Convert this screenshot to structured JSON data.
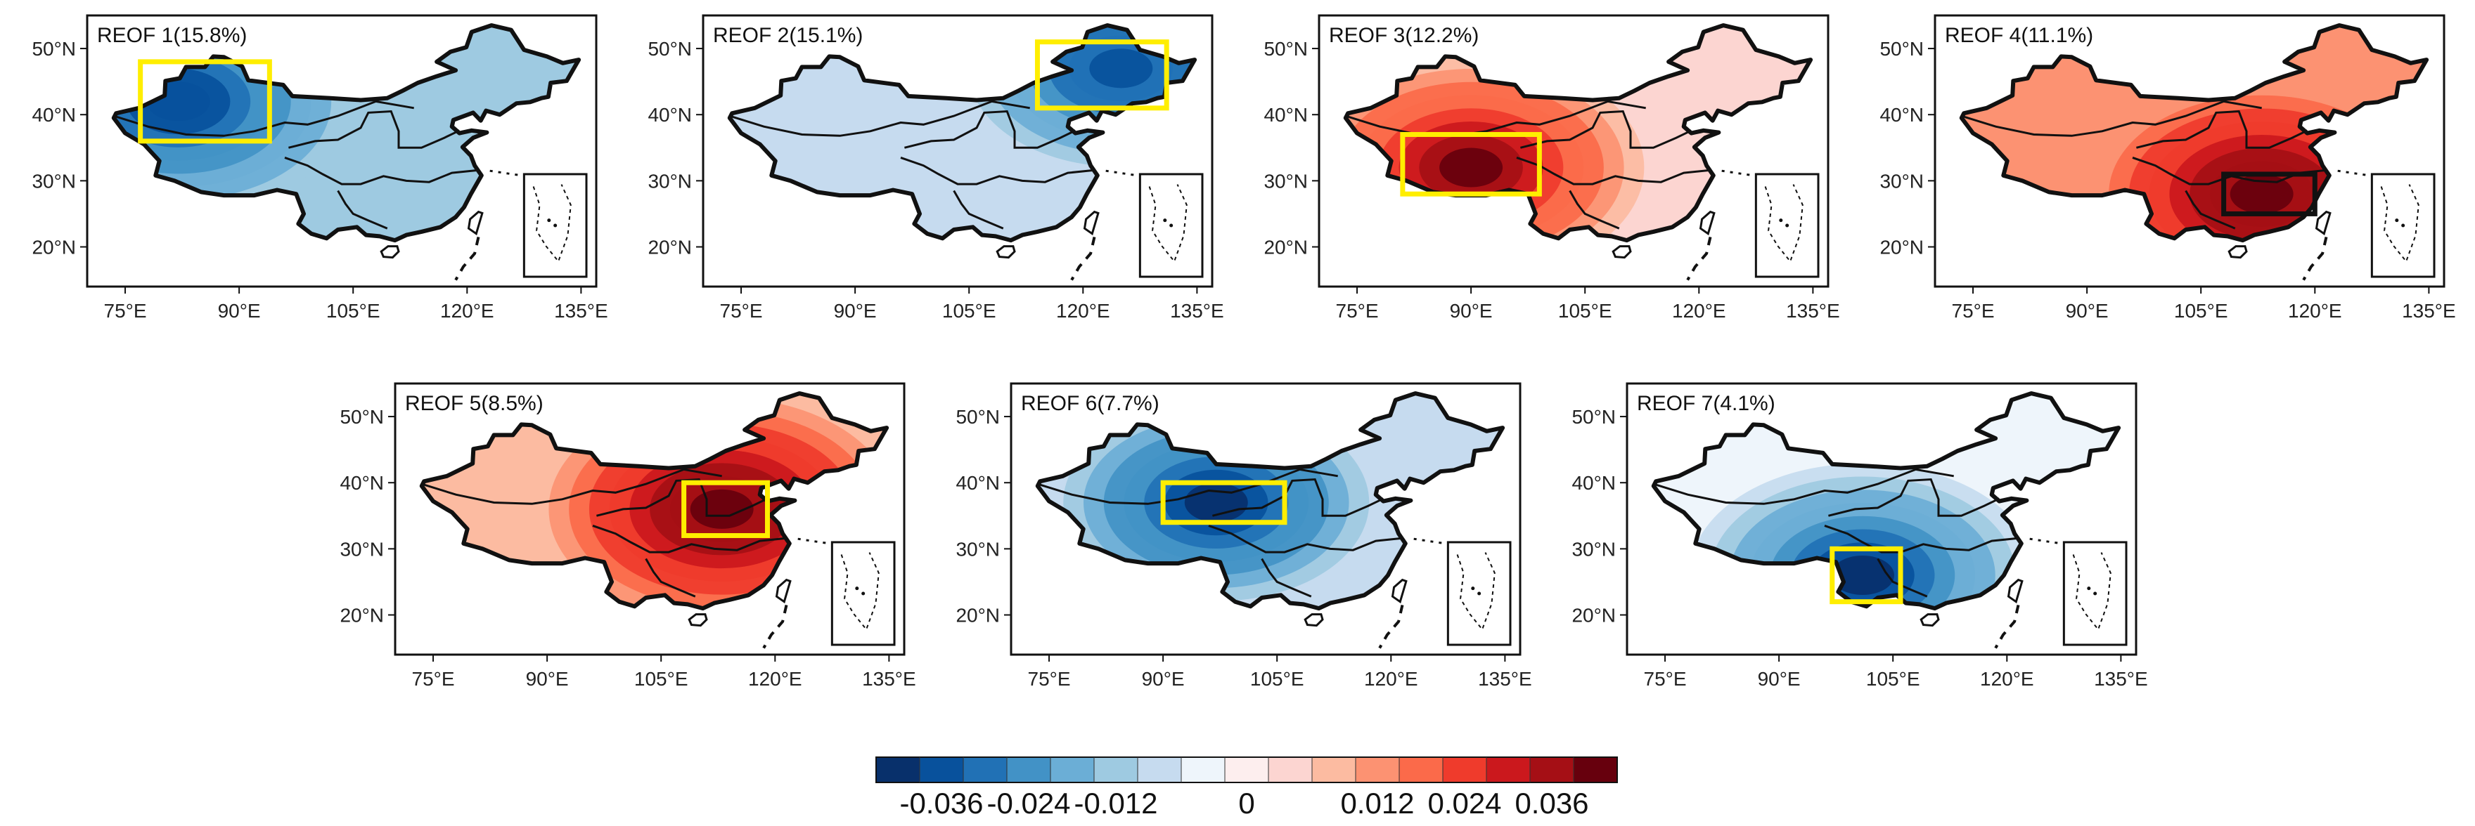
{
  "figure": {
    "x_ticks": [
      "75°E",
      "90°E",
      "105°E",
      "120°E",
      "135°E"
    ],
    "y_ticks": [
      "50°N",
      "40°N",
      "30°N",
      "20°N"
    ],
    "highlight_color": "#ffee00",
    "panels": [
      {
        "label": "REOF 1(15.8%)",
        "palette": "blue",
        "hi": 0.9,
        "hot_lon": 82,
        "hot_lat": 42,
        "base": 0.32,
        "box": {
          "lon": [
            77,
            94
          ],
          "lat": [
            36,
            48
          ]
        },
        "box_color": "#ffee00"
      },
      {
        "label": "REOF 2(15.1%)",
        "palette": "blue",
        "hi": 0.85,
        "hot_lon": 125,
        "hot_lat": 47,
        "base": 0.22,
        "box": {
          "lon": [
            114,
            131
          ],
          "lat": [
            41,
            51
          ]
        },
        "box_color": "#ffee00"
      },
      {
        "label": "REOF 3(12.2%)",
        "palette": "red",
        "hi": 1.0,
        "hot_lon": 90,
        "hot_lat": 32,
        "base": 0.12,
        "box": {
          "lon": [
            81,
            99
          ],
          "lat": [
            28,
            37
          ]
        },
        "box_color": "#ffee00"
      },
      {
        "label": "REOF 4(11.1%)",
        "palette": "red",
        "hi": 1.0,
        "hot_lon": 113,
        "hot_lat": 28,
        "base": 0.32,
        "box": {
          "lon": [
            108,
            120
          ],
          "lat": [
            25,
            31
          ]
        },
        "box_color": "#111111"
      },
      {
        "label": "REOF 5(8.5%)",
        "palette": "red",
        "hi": 1.0,
        "hot_lon": 113,
        "hot_lat": 36,
        "base": 0.3,
        "box": {
          "lon": [
            108,
            119
          ],
          "lat": [
            32,
            40
          ]
        },
        "box_color": "#ffee00"
      },
      {
        "label": "REOF 6(7.7%)",
        "palette": "blue",
        "hi": 0.95,
        "hot_lon": 97,
        "hot_lat": 37,
        "base": 0.22,
        "box": {
          "lon": [
            90,
            106
          ],
          "lat": [
            34,
            40
          ]
        },
        "box_color": "#ffee00"
      },
      {
        "label": "REOF 7(4.1%)",
        "palette": "blue",
        "hi": 1.0,
        "hot_lon": 101,
        "hot_lat": 26,
        "base": 0.12,
        "box": {
          "lon": [
            97,
            106
          ],
          "lat": [
            22,
            30
          ]
        },
        "box_color": "#ffee00"
      }
    ]
  },
  "colorbar": {
    "colors": [
      "#08306b",
      "#08519c",
      "#2171b5",
      "#4292c6",
      "#6baed6",
      "#9ecae1",
      "#c6dbef",
      "#eef5fb",
      "#fdeeee",
      "#fcd5d1",
      "#fcbba1",
      "#fc9272",
      "#fb6a4a",
      "#ef3b2c",
      "#cb181d",
      "#a50f15",
      "#67000d"
    ],
    "tick_labels": [
      "-0.036",
      "-0.024",
      "-0.012",
      "0",
      "0.012",
      "0.024",
      "0.036"
    ]
  }
}
